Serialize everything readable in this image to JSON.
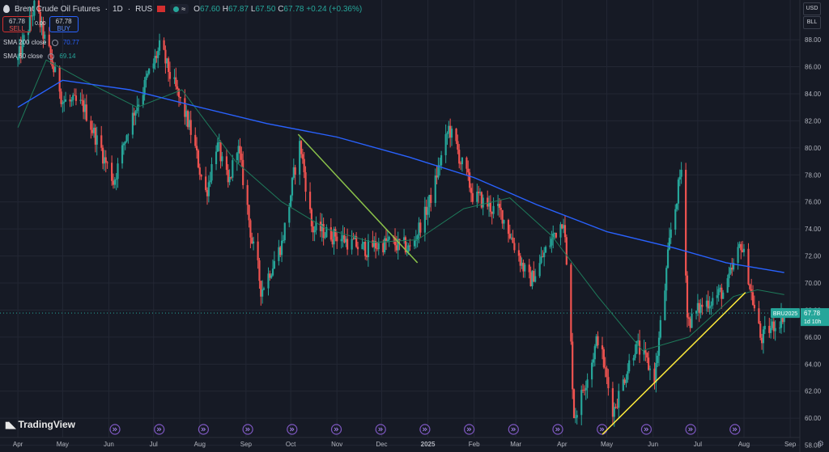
{
  "header": {
    "symbol": "Brent Crude Oil Futures",
    "interval": "1D",
    "exchange": "RUS",
    "ohlc": {
      "o": "67.60",
      "h": "67.87",
      "l": "67.50",
      "c": "67.78",
      "change": "+0.24 (+0.36%)"
    }
  },
  "trade": {
    "sell_price": "67.78",
    "sell_label": "SELL",
    "spread": "0.00",
    "buy_price": "67.78",
    "buy_label": "BUY"
  },
  "indicators": [
    {
      "label": "SMA 200 close",
      "value": "70.77",
      "color": "#2962ff"
    },
    {
      "label": "SMA 50 close",
      "value": "69.14",
      "color": "#1e7a5a"
    }
  ],
  "price_axis": {
    "currency": "USD",
    "unit": "BLL"
  },
  "price_tag": {
    "ticker": "BRU2025",
    "price": "67.78",
    "countdown": "1d 10h"
  },
  "logo": "TradingView",
  "chart_data": {
    "type": "candlestick",
    "x_ticks": [
      "Apr",
      "May",
      "Jun",
      "Jul",
      "Aug",
      "Sep",
      "Oct",
      "Nov",
      "Dec",
      "2025",
      "Feb",
      "Mar",
      "Apr",
      "May",
      "Jun",
      "Jul",
      "Aug",
      "Sep"
    ],
    "y_ticks": [
      58,
      60,
      62,
      64,
      66,
      68,
      70,
      72,
      74,
      76,
      78,
      80,
      82,
      84,
      86,
      88
    ],
    "ylim": [
      56.9,
      90.4
    ],
    "price_path": [
      [
        "2024-04-01",
        86.5
      ],
      [
        "2024-04-12",
        90.5
      ],
      [
        "2024-05-01",
        83.5
      ],
      [
        "2024-05-15",
        83.0
      ],
      [
        "2024-06-04",
        77.5
      ],
      [
        "2024-06-15",
        82.0
      ],
      [
        "2024-07-05",
        87.4
      ],
      [
        "2024-07-25",
        81.5
      ],
      [
        "2024-08-05",
        76.5
      ],
      [
        "2024-08-12",
        80.5
      ],
      [
        "2024-08-20",
        77.0
      ],
      [
        "2024-08-26",
        80.5
      ],
      [
        "2024-09-05",
        73.0
      ],
      [
        "2024-09-11",
        69.5
      ],
      [
        "2024-09-25",
        73.0
      ],
      [
        "2024-10-07",
        80.5
      ],
      [
        "2024-10-15",
        74.0
      ],
      [
        "2024-11-01",
        73.5
      ],
      [
        "2024-11-18",
        72.5
      ],
      [
        "2024-12-05",
        73.0
      ],
      [
        "2024-12-20",
        72.5
      ],
      [
        "2025-01-02",
        76.0
      ],
      [
        "2025-01-15",
        81.5
      ],
      [
        "2025-01-31",
        76.5
      ],
      [
        "2025-02-20",
        75.0
      ],
      [
        "2025-03-10",
        70.0
      ],
      [
        "2025-04-02",
        75.0
      ],
      [
        "2025-04-09",
        60.0
      ],
      [
        "2025-04-25",
        66.0
      ],
      [
        "2025-05-05",
        60.5
      ],
      [
        "2025-05-20",
        65.5
      ],
      [
        "2025-06-02",
        63.0
      ],
      [
        "2025-06-13",
        74.0
      ],
      [
        "2025-06-20",
        78.5
      ],
      [
        "2025-06-24",
        67.0
      ],
      [
        "2025-07-05",
        68.5
      ],
      [
        "2025-07-20",
        69.5
      ],
      [
        "2025-07-30",
        73.0
      ],
      [
        "2025-08-12",
        65.8
      ],
      [
        "2025-08-28",
        67.78
      ]
    ],
    "sma200": [
      [
        "2024-04-01",
        83.0
      ],
      [
        "2024-05-01",
        85.0
      ],
      [
        "2024-06-15",
        84.3
      ],
      [
        "2024-08-01",
        83.0
      ],
      [
        "2024-09-15",
        81.8
      ],
      [
        "2024-11-01",
        80.8
      ],
      [
        "2024-12-20",
        79.3
      ],
      [
        "2025-02-01",
        77.8
      ],
      [
        "2025-03-15",
        75.8
      ],
      [
        "2025-05-01",
        73.8
      ],
      [
        "2025-06-15",
        72.6
      ],
      [
        "2025-07-20",
        71.5
      ],
      [
        "2025-08-28",
        70.77
      ]
    ],
    "sma50": [
      [
        "2024-04-01",
        81.5
      ],
      [
        "2024-04-20",
        86.5
      ],
      [
        "2024-05-15",
        85.0
      ],
      [
        "2024-06-20",
        83.0
      ],
      [
        "2024-07-20",
        84.3
      ],
      [
        "2024-08-25",
        79.0
      ],
      [
        "2024-09-25",
        76.0
      ],
      [
        "2024-10-25",
        74.0
      ],
      [
        "2024-11-25",
        73.0
      ],
      [
        "2024-12-25",
        73.2
      ],
      [
        "2025-01-25",
        75.5
      ],
      [
        "2025-02-25",
        76.3
      ],
      [
        "2025-03-25",
        73.5
      ],
      [
        "2025-04-25",
        69.0
      ],
      [
        "2025-05-25",
        65.0
      ],
      [
        "2025-06-25",
        66.0
      ],
      [
        "2025-07-25",
        69.0
      ],
      [
        "2025-08-10",
        69.5
      ],
      [
        "2025-08-28",
        69.14
      ]
    ],
    "trendlines": [
      {
        "color": "#8bc34a",
        "from": [
          "2024-10-06",
          81.0
        ],
        "to": [
          "2024-12-25",
          71.5
        ]
      },
      {
        "color": "#ffeb3b",
        "from": [
          "2025-04-28",
          58.8
        ],
        "to": [
          "2025-08-02",
          69.3
        ]
      }
    ],
    "last_price": 67.78,
    "colors": {
      "up": "#26a69a",
      "down": "#ef5350",
      "background": "#161a25",
      "grid": "#232734"
    }
  }
}
